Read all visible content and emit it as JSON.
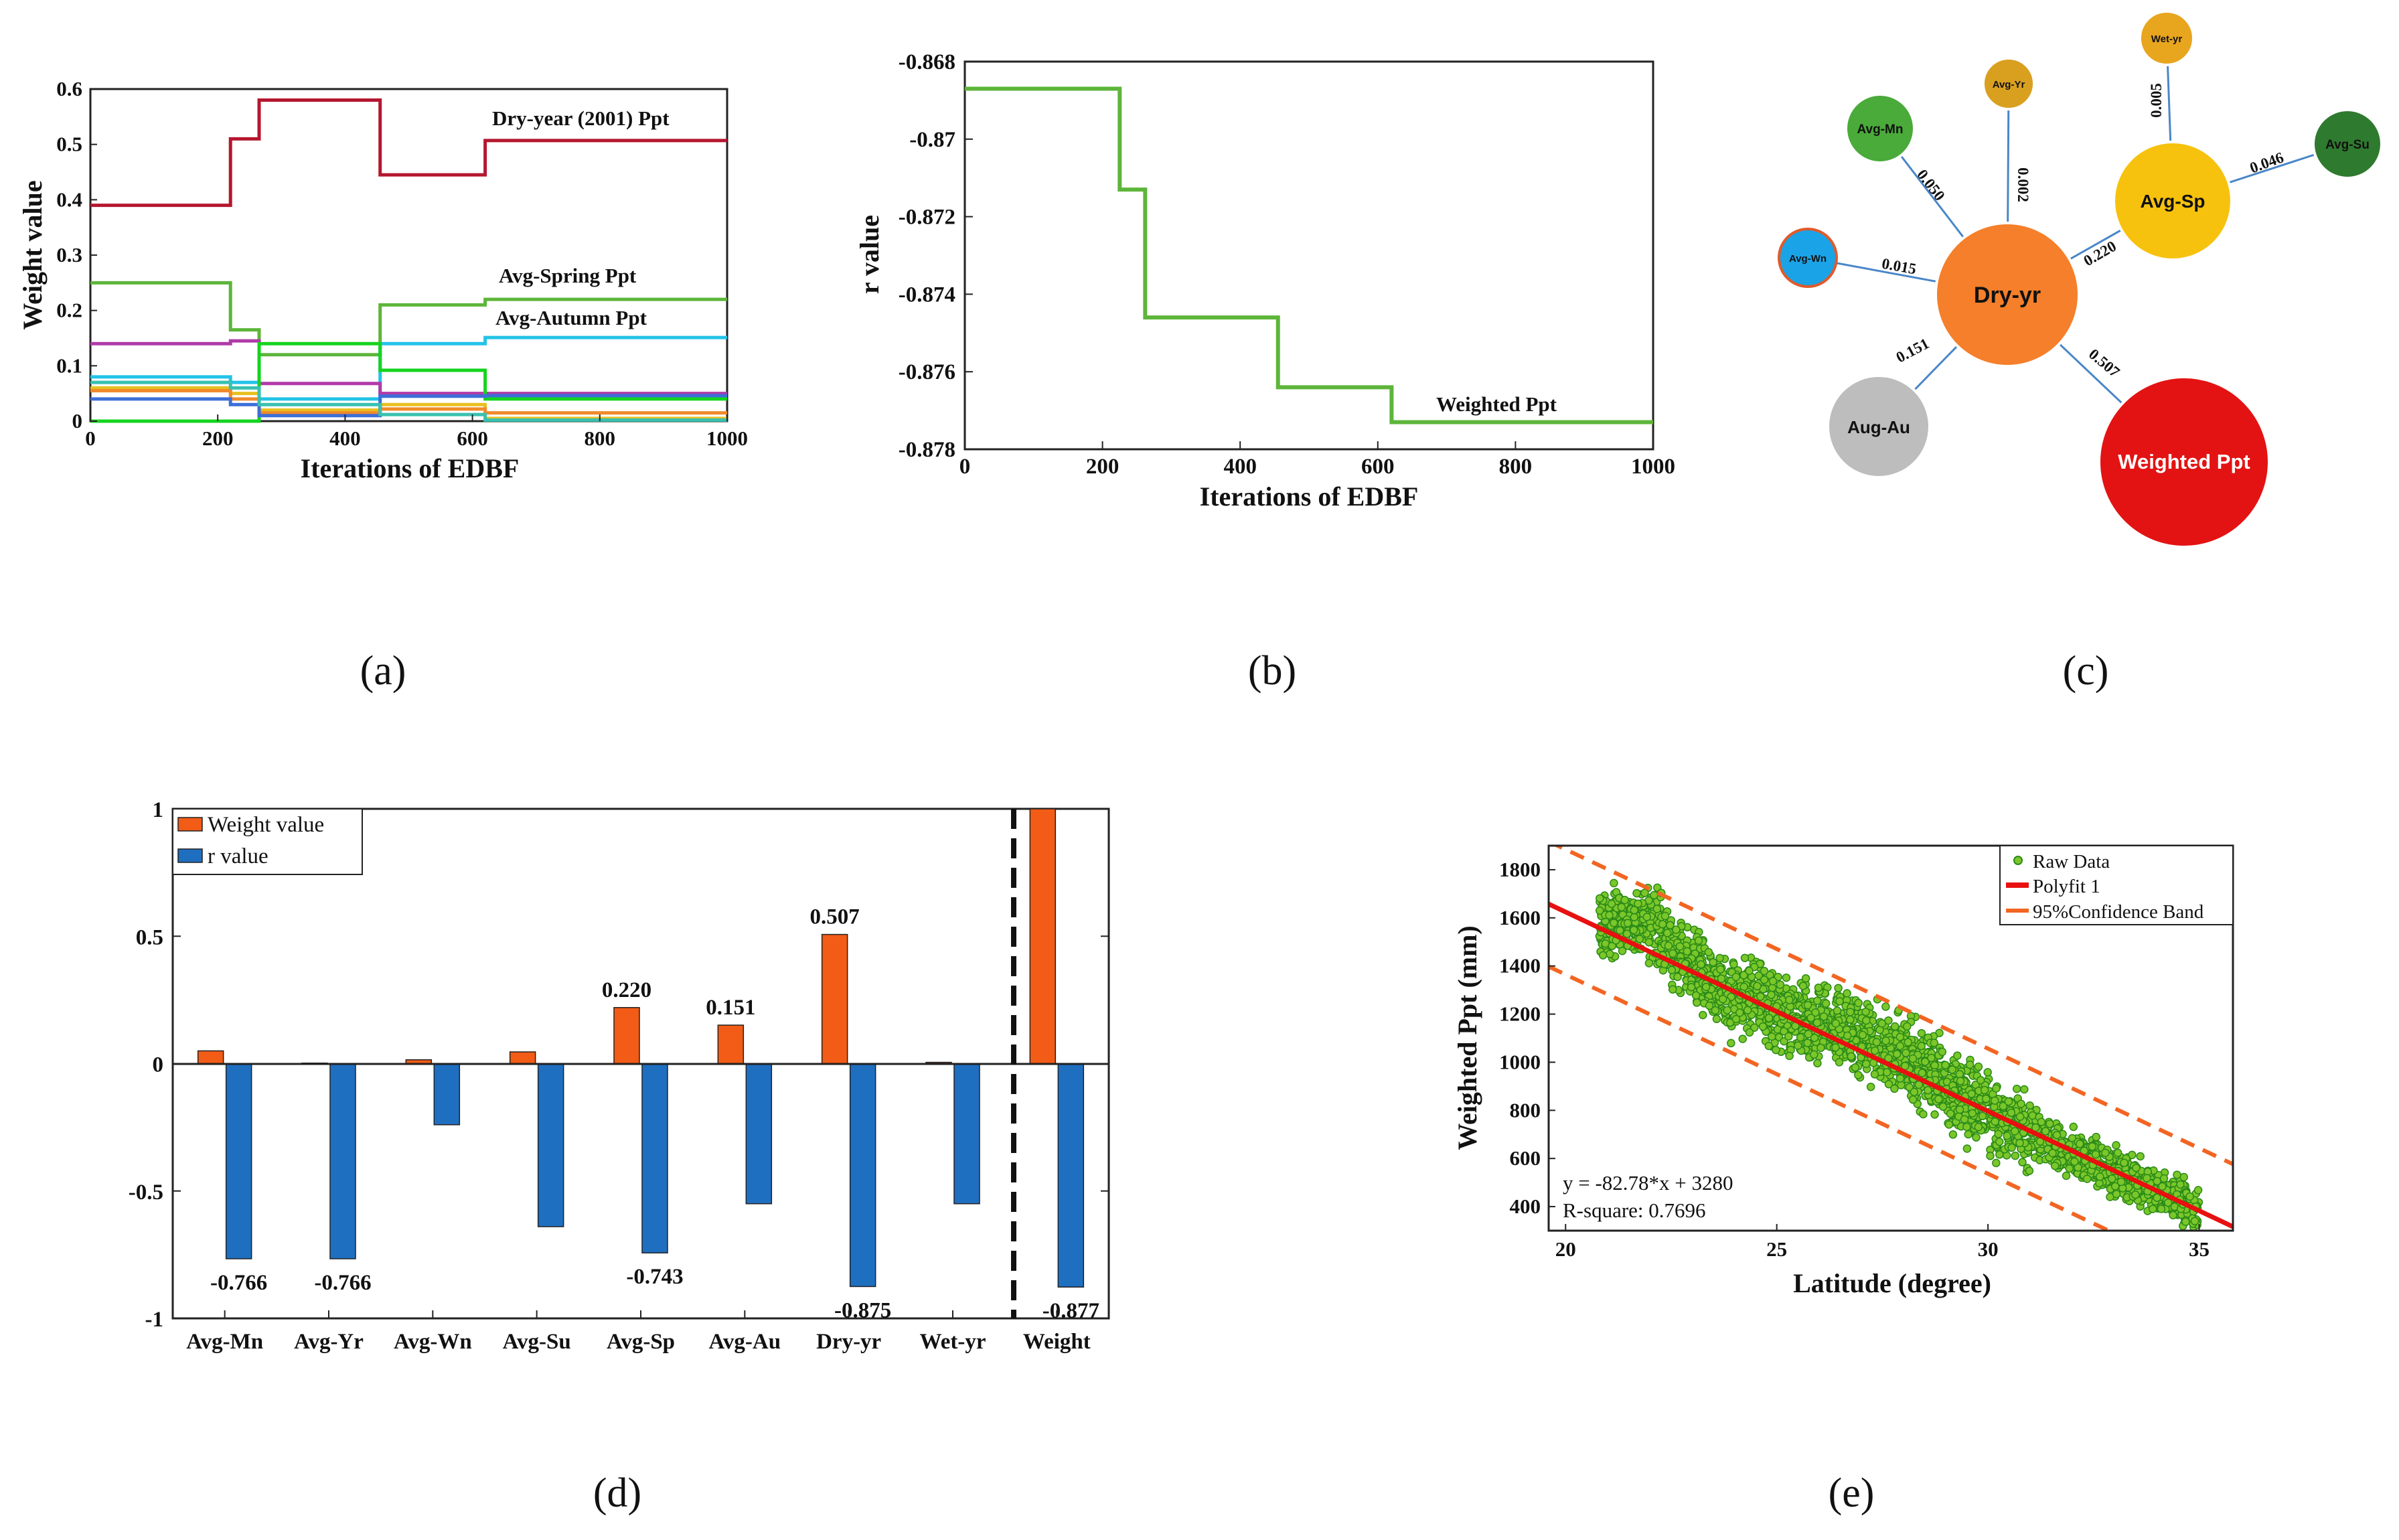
{
  "captions": {
    "a": "(a)",
    "b": "(b)",
    "c": "(c)",
    "d": "(d)",
    "e": "(e)"
  },
  "chart_data": [
    {
      "panel": "a",
      "type": "line",
      "xlabel": "Iterations of EDBF",
      "ylabel": "Weight value",
      "xlim": [
        0,
        1000
      ],
      "ylim": [
        0,
        0.6
      ],
      "xticks": [
        "0",
        "200",
        "400",
        "600",
        "800",
        "1000"
      ],
      "yticks": [
        "0",
        "0.1",
        "0.2",
        "0.3",
        "0.4",
        "0.5",
        "0.6"
      ],
      "annotations": [
        "Dry-year (2001) Ppt",
        "Avg-Spring Ppt",
        "Avg-Autumn Ppt"
      ],
      "series": [
        {
          "name": "Dry-year (2001) Ppt",
          "color": "#b5172f",
          "points": [
            [
              0,
              0.39
            ],
            [
              220,
              0.39
            ],
            [
              220,
              0.51
            ],
            [
              265,
              0.51
            ],
            [
              265,
              0.58
            ],
            [
              455,
              0.58
            ],
            [
              455,
              0.445
            ],
            [
              620,
              0.445
            ],
            [
              620,
              0.507
            ],
            [
              1000,
              0.507
            ]
          ]
        },
        {
          "name": "Avg-Spring Ppt",
          "color": "#5db53a",
          "points": [
            [
              0,
              0.25
            ],
            [
              220,
              0.25
            ],
            [
              220,
              0.165
            ],
            [
              265,
              0.165
            ],
            [
              265,
              0.12
            ],
            [
              455,
              0.12
            ],
            [
              455,
              0.21
            ],
            [
              620,
              0.21
            ],
            [
              620,
              0.22
            ],
            [
              1000,
              0.22
            ]
          ]
        },
        {
          "name": "Avg-Autumn Ppt",
          "color": "#23c3e8",
          "points": [
            [
              0,
              0.08
            ],
            [
              220,
              0.08
            ],
            [
              220,
              0.07
            ],
            [
              265,
              0.07
            ],
            [
              265,
              0.04
            ],
            [
              455,
              0.04
            ],
            [
              455,
              0.14
            ],
            [
              620,
              0.14
            ],
            [
              620,
              0.151
            ],
            [
              1000,
              0.151
            ]
          ]
        },
        {
          "name": "purple",
          "color": "#b03aa8",
          "points": [
            [
              0,
              0.14
            ],
            [
              220,
              0.14
            ],
            [
              220,
              0.145
            ],
            [
              265,
              0.145
            ],
            [
              265,
              0.068
            ],
            [
              455,
              0.068
            ],
            [
              455,
              0.05
            ],
            [
              620,
              0.05
            ],
            [
              620,
              0.05
            ],
            [
              1000,
              0.05
            ]
          ]
        },
        {
          "name": "bright-green",
          "color": "#15d41e",
          "points": [
            [
              0,
              0.0
            ],
            [
              220,
              0.0
            ],
            [
              220,
              0.0
            ],
            [
              265,
              0.0
            ],
            [
              265,
              0.14
            ],
            [
              455,
              0.14
            ],
            [
              455,
              0.092
            ],
            [
              620,
              0.092
            ],
            [
              620,
              0.04
            ],
            [
              1000,
              0.04
            ]
          ]
        },
        {
          "name": "yellow",
          "color": "#e8c020",
          "points": [
            [
              0,
              0.06
            ],
            [
              220,
              0.06
            ],
            [
              220,
              0.05
            ],
            [
              265,
              0.05
            ],
            [
              265,
              0.02
            ],
            [
              455,
              0.02
            ],
            [
              455,
              0.03
            ],
            [
              620,
              0.03
            ],
            [
              620,
              0.005
            ],
            [
              1000,
              0.005
            ]
          ]
        },
        {
          "name": "orange",
          "color": "#f08a2a",
          "points": [
            [
              0,
              0.055
            ],
            [
              220,
              0.055
            ],
            [
              220,
              0.04
            ],
            [
              265,
              0.04
            ],
            [
              265,
              0.015
            ],
            [
              455,
              0.015
            ],
            [
              455,
              0.022
            ],
            [
              620,
              0.022
            ],
            [
              620,
              0.015
            ],
            [
              1000,
              0.015
            ]
          ]
        },
        {
          "name": "blue",
          "color": "#3c6fd8",
          "points": [
            [
              0,
              0.04
            ],
            [
              220,
              0.04
            ],
            [
              220,
              0.03
            ],
            [
              265,
              0.03
            ],
            [
              265,
              0.01
            ],
            [
              455,
              0.01
            ],
            [
              455,
              0.045
            ],
            [
              620,
              0.045
            ],
            [
              620,
              0.046
            ],
            [
              1000,
              0.046
            ]
          ]
        },
        {
          "name": "teal",
          "color": "#39c0b0",
          "points": [
            [
              0,
              0.07
            ],
            [
              220,
              0.07
            ],
            [
              220,
              0.06
            ],
            [
              265,
              0.06
            ],
            [
              265,
              0.03
            ],
            [
              455,
              0.03
            ],
            [
              455,
              0.012
            ],
            [
              620,
              0.012
            ],
            [
              620,
              0.002
            ],
            [
              1000,
              0.002
            ]
          ]
        }
      ]
    },
    {
      "panel": "b",
      "type": "line",
      "xlabel": "Iterations of EDBF",
      "ylabel": "r value",
      "xlim": [
        0,
        1000
      ],
      "ylim": [
        -0.878,
        -0.868
      ],
      "xticks": [
        "0",
        "200",
        "400",
        "600",
        "800",
        "1000"
      ],
      "yticks": [
        "-0.868",
        "-0.87",
        "-0.872",
        "-0.874",
        "-0.876",
        "-0.878"
      ],
      "annotations": [
        "Weighted Ppt"
      ],
      "series": [
        {
          "name": "Weighted Ppt",
          "color": "#5db53a",
          "points": [
            [
              0,
              -0.8687
            ],
            [
              225,
              -0.8687
            ],
            [
              225,
              -0.8713
            ],
            [
              262,
              -0.8713
            ],
            [
              262,
              -0.8746
            ],
            [
              455,
              -0.8746
            ],
            [
              455,
              -0.8764
            ],
            [
              620,
              -0.8764
            ],
            [
              620,
              -0.8773
            ],
            [
              1000,
              -0.8773
            ]
          ]
        }
      ]
    },
    {
      "panel": "c",
      "type": "network",
      "center": {
        "label": "Dry-yr",
        "color": "#f57f2a"
      },
      "nodes": [
        {
          "label": "Avg-Mn",
          "color": "#4aaa3a",
          "weight": "0.050"
        },
        {
          "label": "Avg-Yr",
          "color": "#d9a020",
          "weight": "0.002"
        },
        {
          "label": "Avg-Sp",
          "color": "#f7c20e",
          "weight": "0.220"
        },
        {
          "label": "Avg-Wn",
          "color": "#1aa3e6",
          "weight": "0.015"
        },
        {
          "label": "Aug-Au",
          "color": "#bdbdbd",
          "weight": "0.151"
        },
        {
          "label": "Weighted Ppt",
          "color": "#e31313",
          "weight": "0.507"
        },
        {
          "label": "Wet-yr",
          "color": "#e8a51e",
          "weight": "0.005"
        },
        {
          "label": "Avg-Su",
          "color": "#2e7a2e",
          "weight": "0.046"
        }
      ]
    },
    {
      "panel": "d",
      "type": "bar",
      "categories": [
        "Avg-Mn",
        "Avg-Yr",
        "Avg-Wn",
        "Avg-Su",
        "Avg-Sp",
        "Avg-Au",
        "Dry-yr",
        "Wet-yr",
        "Weight"
      ],
      "series": [
        {
          "name": "Weight value",
          "color": "#f25c16",
          "values": [
            0.05,
            0.002,
            0.015,
            0.046,
            0.22,
            0.151,
            0.507,
            0.005,
            1.0
          ]
        },
        {
          "name": "r value",
          "color": "#1f6fc0",
          "values": [
            -0.766,
            -0.766,
            -0.24,
            -0.64,
            -0.743,
            -0.55,
            -0.875,
            -0.55,
            -0.877
          ]
        }
      ],
      "weight_labels": [
        {
          "index": 4,
          "text": "0.220"
        },
        {
          "index": 5,
          "text": "0.151"
        },
        {
          "index": 6,
          "text": "0.507"
        }
      ],
      "r_labels": [
        {
          "index": 0,
          "text": "-0.766"
        },
        {
          "index": 1,
          "text": "-0.766"
        },
        {
          "index": 4,
          "text": "-0.743"
        },
        {
          "index": 6,
          "text": "-0.875"
        },
        {
          "index": 8,
          "text": "-0.877"
        }
      ],
      "ylim": [
        -1,
        1
      ],
      "yticks": [
        "1",
        "0.5",
        "0",
        "-0.5",
        "-1"
      ],
      "legend": [
        "Weight value",
        "r value"
      ]
    },
    {
      "panel": "e",
      "type": "scatter",
      "xlabel": "Latitude  (degree)",
      "ylabel": "Weighted Ppt  (mm)",
      "xlim": [
        19.6,
        35.8
      ],
      "ylim": [
        300,
        1900
      ],
      "xticks": [
        "20",
        "25",
        "30",
        "35"
      ],
      "yticks": [
        "1800",
        "1600",
        "1400",
        "1200",
        "1000",
        "800",
        "600",
        "400"
      ],
      "fit": {
        "slope": -82.78,
        "intercept": 3280,
        "band": 260
      },
      "equation": "y = -82.78*x + 3280",
      "r_square": "R-square: 0.7696",
      "legend": [
        "Raw Data",
        "Polyfit 1",
        "95%Confidence Band"
      ]
    }
  ]
}
